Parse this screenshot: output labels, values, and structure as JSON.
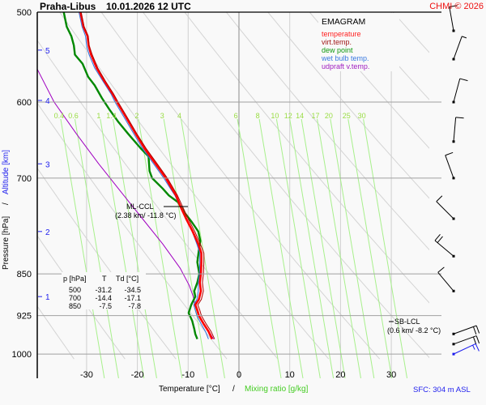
{
  "header": {
    "station": "Praha-Libus",
    "datetime": "10.01.2026 12 UTC",
    "copyright": "CHMI © 2026"
  },
  "legend": {
    "title": "EMAGRAM",
    "items": [
      {
        "label": "temperature",
        "color": "#ff0000"
      },
      {
        "label": "virt.temp.",
        "color": "#b00000"
      },
      {
        "label": "dew point",
        "color": "#008800"
      },
      {
        "label": "wet bulb temp.",
        "color": "#3070e0"
      },
      {
        "label": "udpraft v.temp.",
        "color": "#a000c0"
      }
    ]
  },
  "footer": {
    "sfc": "SFC: 304 m ASL"
  },
  "table": {
    "headers": [
      "p [hPa]",
      "T",
      "Td [°C]"
    ],
    "rows": [
      [
        "500",
        "-31.2",
        "-34.5"
      ],
      [
        "700",
        "-14.4",
        "-17.1"
      ],
      [
        "850",
        "-7.5",
        "-7.8"
      ]
    ]
  },
  "annotations": {
    "ml_ccl_label": "ML-CCL",
    "ml_ccl_value": "(2.38 km/ -11.8 °C)",
    "sb_lcl_label": "SB-LCL",
    "sb_lcl_value": "(0.6 km/ -8.2 °C)"
  },
  "chart_data": {
    "type": "line",
    "title": "Praha-Libus 10.01.2026 12 UTC",
    "xlabel": "Temperature [°C]",
    "xlabel2": "Mixing ratio [g/kg]",
    "xlabel_sep": "/",
    "ylabel": "Pressure [hPa]",
    "ylabel2": "Altitude [km]",
    "ylabel_sep": "/",
    "xlim": [
      -40,
      37
    ],
    "ylim": [
      1000,
      500
    ],
    "x_ticks": [
      -30,
      -20,
      -10,
      0,
      10,
      20,
      30
    ],
    "x_tick_labels": [
      "-30",
      "-20",
      "-10",
      "0",
      "10",
      "20",
      "30"
    ],
    "y_ticks": [
      500,
      600,
      700,
      850,
      925,
      1000
    ],
    "y_tick_labels": [
      "500",
      "600",
      "700",
      "850",
      "925",
      "1000"
    ],
    "altitude_ticks": [
      {
        "km": 5,
        "label": "5",
        "p": 540
      },
      {
        "km": 4,
        "label": "4",
        "p": 598
      },
      {
        "km": 3,
        "label": "3",
        "p": 680
      },
      {
        "km": 2,
        "label": "2",
        "p": 780
      },
      {
        "km": 1,
        "label": "1",
        "p": 890
      }
    ],
    "mixing_ratio_lines": [
      {
        "label": "0.4",
        "value": 0.4,
        "t_top": -35.1
      },
      {
        "label": "0.6",
        "value": 0.6,
        "t_top": -32.3
      },
      {
        "label": "1",
        "value": 1,
        "t_top": -27.3
      },
      {
        "label": "1.4",
        "value": 1.4,
        "t_top": -24.8
      },
      {
        "label": "2",
        "value": 2,
        "t_top": -19.8
      },
      {
        "label": "3",
        "value": 3,
        "t_top": -14.8
      },
      {
        "label": "4",
        "value": 4,
        "t_top": -11.4
      },
      {
        "label": "6",
        "value": 6,
        "t_top": -0.3
      },
      {
        "label": "8",
        "value": 8,
        "t_top": 4.0
      },
      {
        "label": "10",
        "value": 10,
        "t_top": 7.4
      },
      {
        "label": "12",
        "value": 12,
        "t_top": 10.0
      },
      {
        "label": "14",
        "value": 14,
        "t_top": 12.3
      },
      {
        "label": "17",
        "value": 17,
        "t_top": 15.4
      },
      {
        "label": "20",
        "value": 20,
        "t_top": 18.0
      },
      {
        "label": "25",
        "value": 25,
        "t_top": 21.5
      },
      {
        "label": "30",
        "value": 30,
        "t_top": 24.5
      }
    ],
    "series": [
      {
        "name": "temperature",
        "color": "#ff0000",
        "points": [
          [
            500,
            -31.2
          ],
          [
            515,
            -30.6
          ],
          [
            525,
            -29.8
          ],
          [
            535,
            -29.6
          ],
          [
            545,
            -29.1
          ],
          [
            560,
            -28.0
          ],
          [
            575,
            -26.5
          ],
          [
            590,
            -24.9
          ],
          [
            600,
            -24.0
          ],
          [
            620,
            -22.1
          ],
          [
            640,
            -20.3
          ],
          [
            660,
            -18.5
          ],
          [
            680,
            -16.4
          ],
          [
            700,
            -14.4
          ],
          [
            715,
            -13.2
          ],
          [
            725,
            -12.4
          ],
          [
            740,
            -11.6
          ],
          [
            760,
            -10.4
          ],
          [
            780,
            -9.1
          ],
          [
            800,
            -8.0
          ],
          [
            815,
            -7.4
          ],
          [
            830,
            -7.4
          ],
          [
            850,
            -7.5
          ],
          [
            865,
            -7.7
          ],
          [
            880,
            -7.5
          ],
          [
            895,
            -7.9
          ],
          [
            905,
            -8.6
          ],
          [
            915,
            -8.2
          ],
          [
            925,
            -7.9
          ],
          [
            940,
            -7.0
          ],
          [
            955,
            -6.0
          ],
          [
            970,
            -5.3
          ]
        ]
      },
      {
        "name": "virt.temp.",
        "color": "#b00000",
        "points": [
          [
            500,
            -31.1
          ],
          [
            515,
            -30.5
          ],
          [
            525,
            -29.7
          ],
          [
            535,
            -29.5
          ],
          [
            545,
            -28.9
          ],
          [
            560,
            -27.8
          ],
          [
            575,
            -26.3
          ],
          [
            590,
            -24.7
          ],
          [
            600,
            -23.8
          ],
          [
            620,
            -21.9
          ],
          [
            640,
            -20.1
          ],
          [
            660,
            -18.2
          ],
          [
            680,
            -16.1
          ],
          [
            700,
            -14.1
          ],
          [
            715,
            -12.9
          ],
          [
            725,
            -12.1
          ],
          [
            740,
            -11.2
          ],
          [
            760,
            -10.0
          ],
          [
            780,
            -8.7
          ],
          [
            800,
            -7.6
          ],
          [
            815,
            -6.9
          ],
          [
            830,
            -6.9
          ],
          [
            850,
            -7.0
          ],
          [
            865,
            -7.2
          ],
          [
            880,
            -7.0
          ],
          [
            895,
            -7.4
          ],
          [
            905,
            -8.1
          ],
          [
            915,
            -7.7
          ],
          [
            925,
            -7.4
          ],
          [
            940,
            -6.5
          ],
          [
            955,
            -5.5
          ],
          [
            970,
            -4.8
          ]
        ]
      },
      {
        "name": "dew point",
        "color": "#008800",
        "points": [
          [
            500,
            -34.5
          ],
          [
            515,
            -33.9
          ],
          [
            525,
            -33.0
          ],
          [
            535,
            -32.5
          ],
          [
            545,
            -32.3
          ],
          [
            555,
            -30.8
          ],
          [
            570,
            -29.7
          ],
          [
            580,
            -28.4
          ],
          [
            595,
            -27.0
          ],
          [
            610,
            -25.4
          ],
          [
            625,
            -23.7
          ],
          [
            640,
            -21.8
          ],
          [
            660,
            -19.2
          ],
          [
            670,
            -17.8
          ],
          [
            690,
            -17.6
          ],
          [
            700,
            -17.1
          ],
          [
            715,
            -15.0
          ],
          [
            725,
            -13.8
          ],
          [
            735,
            -12.0
          ],
          [
            750,
            -10.8
          ],
          [
            765,
            -9.3
          ],
          [
            780,
            -8.0
          ],
          [
            795,
            -7.6
          ],
          [
            810,
            -7.9
          ],
          [
            830,
            -8.2
          ],
          [
            850,
            -7.8
          ],
          [
            865,
            -8.2
          ],
          [
            880,
            -8.8
          ],
          [
            890,
            -8.6
          ],
          [
            905,
            -9.4
          ],
          [
            920,
            -9.9
          ],
          [
            935,
            -9.2
          ],
          [
            950,
            -8.8
          ],
          [
            960,
            -8.6
          ],
          [
            970,
            -8.2
          ]
        ]
      },
      {
        "name": "wet bulb temp.",
        "color": "#3070e0",
        "points": [
          [
            500,
            -31.5
          ],
          [
            515,
            -30.9
          ],
          [
            525,
            -30.2
          ],
          [
            535,
            -30.0
          ],
          [
            545,
            -29.5
          ],
          [
            560,
            -28.4
          ],
          [
            575,
            -26.8
          ],
          [
            590,
            -25.2
          ],
          [
            600,
            -24.4
          ],
          [
            620,
            -22.5
          ],
          [
            640,
            -20.7
          ],
          [
            660,
            -18.9
          ],
          [
            680,
            -16.8
          ],
          [
            700,
            -14.8
          ],
          [
            715,
            -13.5
          ],
          [
            725,
            -12.6
          ],
          [
            740,
            -11.7
          ],
          [
            760,
            -10.5
          ],
          [
            780,
            -9.2
          ],
          [
            800,
            -8.3
          ],
          [
            815,
            -7.7
          ],
          [
            830,
            -7.7
          ],
          [
            850,
            -7.8
          ],
          [
            865,
            -8.0
          ],
          [
            880,
            -8.0
          ],
          [
            895,
            -8.3
          ],
          [
            905,
            -8.9
          ],
          [
            915,
            -8.6
          ],
          [
            925,
            -8.3
          ],
          [
            940,
            -7.5
          ],
          [
            955,
            -6.6
          ],
          [
            970,
            -6.0
          ]
        ]
      },
      {
        "name": "udpraft v.temp.",
        "color": "#a000c0",
        "points": [
          [
            558,
            -40.0
          ],
          [
            600,
            -36.4
          ],
          [
            640,
            -32.0
          ],
          [
            680,
            -27.6
          ],
          [
            720,
            -23.2
          ],
          [
            760,
            -19.0
          ],
          [
            800,
            -15.0
          ],
          [
            840,
            -11.6
          ],
          [
            870,
            -9.8
          ],
          [
            890,
            -9.0
          ],
          [
            905,
            -8.7
          ],
          [
            925,
            -7.8
          ],
          [
            945,
            -6.6
          ],
          [
            960,
            -5.6
          ],
          [
            970,
            -5.0
          ]
        ]
      }
    ],
    "wind_barbs": [
      {
        "p": 500,
        "dir": 350,
        "speed_kt": 10
      },
      {
        "p": 550,
        "dir": 20,
        "speed_kt": 5
      },
      {
        "p": 600,
        "dir": 15,
        "speed_kt": 10
      },
      {
        "p": 650,
        "dir": 5,
        "speed_kt": 10
      },
      {
        "p": 700,
        "dir": 340,
        "speed_kt": 10
      },
      {
        "p": 760,
        "dir": 315,
        "speed_kt": 10
      },
      {
        "p": 820,
        "dir": 310,
        "speed_kt": 20
      },
      {
        "p": 880,
        "dir": 320,
        "speed_kt": 10
      },
      {
        "p": 960,
        "dir": 70,
        "speed_kt": 20
      },
      {
        "p": 980,
        "dir": 70,
        "speed_kt": 20
      },
      {
        "p": 1000,
        "dir": 65,
        "speed_kt": 15
      }
    ]
  }
}
